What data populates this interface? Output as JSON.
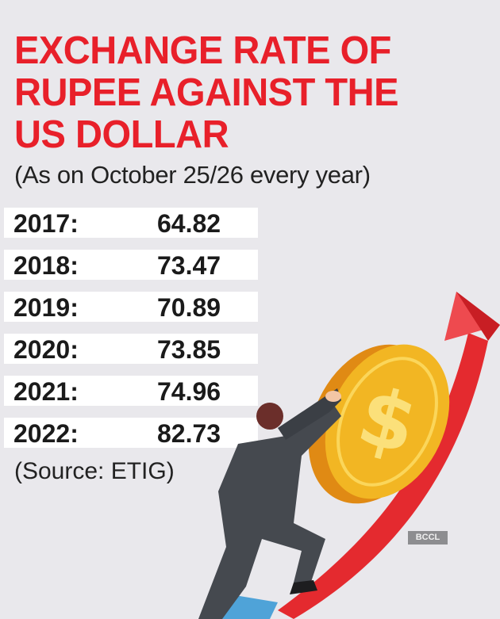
{
  "title_lines": [
    "EXCHANGE RATE OF",
    "RUPEE AGAINST THE",
    "US DOLLAR"
  ],
  "subtitle": "(As on October 25/26 every year)",
  "source": "(Source: ETIG)",
  "watermark": "BCCL",
  "colors": {
    "title": "#e8202a",
    "background": "#e9e8ec",
    "row_box": "#ffffff",
    "arrow": "#e42a2f",
    "coin": "#f2b623"
  },
  "illustration": {
    "icons": [
      "businessman-icon",
      "dollar-coin-icon",
      "rising-arrow-icon"
    ]
  },
  "chart_data": {
    "type": "table",
    "title": "EXCHANGE RATE OF RUPEE AGAINST THE US DOLLAR",
    "subtitle": "(As on October 25/26 every year)",
    "rows": [
      {
        "year": "2017:",
        "value": "64.82"
      },
      {
        "year": "2018:",
        "value": "73.47"
      },
      {
        "year": "2019:",
        "value": "70.89"
      },
      {
        "year": "2020:",
        "value": "73.85"
      },
      {
        "year": "2021:",
        "value": "74.96"
      },
      {
        "year": "2022:",
        "value": "82.73"
      }
    ]
  }
}
